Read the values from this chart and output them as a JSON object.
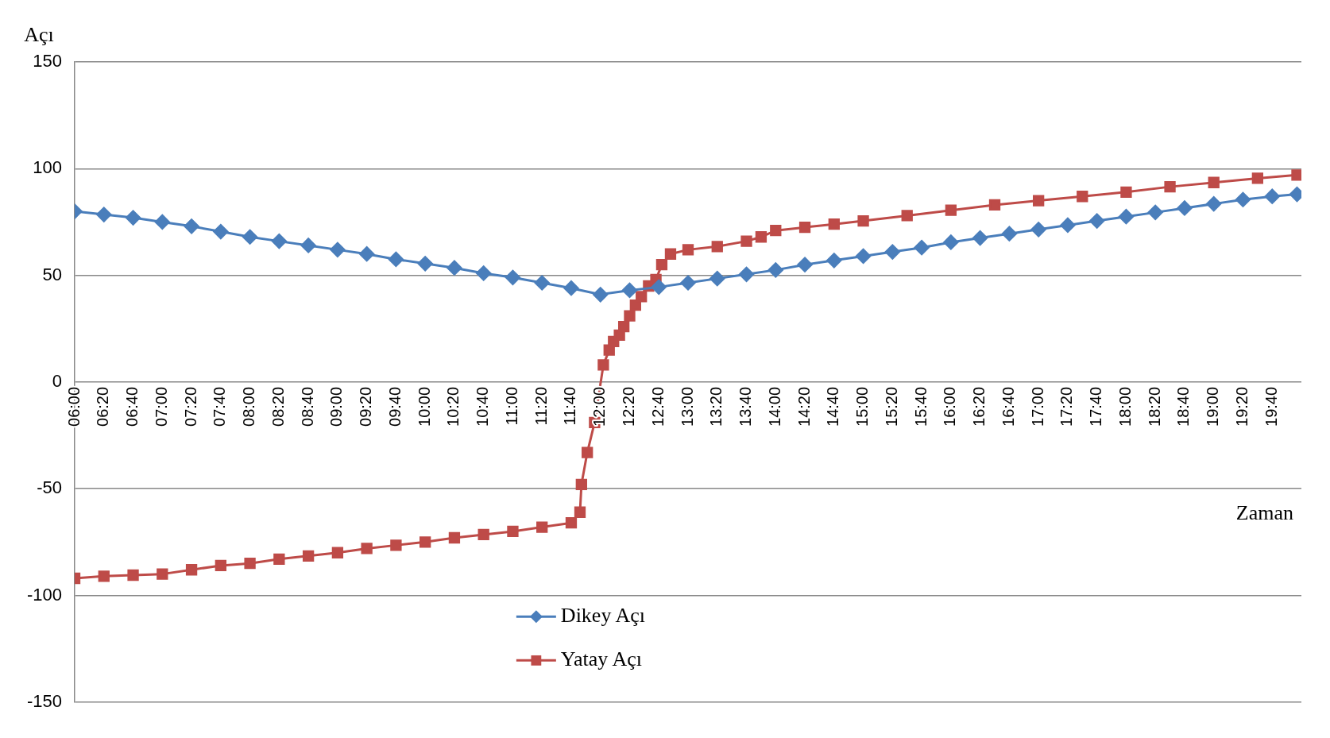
{
  "chart_data": {
    "type": "line",
    "xlabel": "Zaman",
    "ylabel": "Açı",
    "xlim": [
      6,
      20
    ],
    "ylim": [
      -150,
      150
    ],
    "yticks": [
      -150,
      -100,
      -50,
      0,
      50,
      100,
      150
    ],
    "xticks": [
      {
        "value": 6,
        "label": "06:00"
      },
      {
        "value": 6.3333,
        "label": "06:20"
      },
      {
        "value": 6.6667,
        "label": "06:40"
      },
      {
        "value": 7,
        "label": "07:00"
      },
      {
        "value": 7.3333,
        "label": "07:20"
      },
      {
        "value": 7.6667,
        "label": "07:40"
      },
      {
        "value": 8,
        "label": "08:00"
      },
      {
        "value": 8.3333,
        "label": "08:20"
      },
      {
        "value": 8.6667,
        "label": "08:40"
      },
      {
        "value": 9,
        "label": "09:00"
      },
      {
        "value": 9.3333,
        "label": "09:20"
      },
      {
        "value": 9.6667,
        "label": "09:40"
      },
      {
        "value": 10,
        "label": "10:00"
      },
      {
        "value": 10.3333,
        "label": "10:20"
      },
      {
        "value": 10.6667,
        "label": "10:40"
      },
      {
        "value": 11,
        "label": "11:00"
      },
      {
        "value": 11.3333,
        "label": "11:20"
      },
      {
        "value": 11.6667,
        "label": "11:40"
      },
      {
        "value": 12,
        "label": "12:00"
      },
      {
        "value": 12.3333,
        "label": "12:20"
      },
      {
        "value": 12.6667,
        "label": "12:40"
      },
      {
        "value": 13,
        "label": "13:00"
      },
      {
        "value": 13.3333,
        "label": "13:20"
      },
      {
        "value": 13.6667,
        "label": "13:40"
      },
      {
        "value": 14,
        "label": "14:00"
      },
      {
        "value": 14.3333,
        "label": "14:20"
      },
      {
        "value": 14.6667,
        "label": "14:40"
      },
      {
        "value": 15,
        "label": "15:00"
      },
      {
        "value": 15.3333,
        "label": "15:20"
      },
      {
        "value": 15.6667,
        "label": "15:40"
      },
      {
        "value": 16,
        "label": "16:00"
      },
      {
        "value": 16.3333,
        "label": "16:20"
      },
      {
        "value": 16.6667,
        "label": "16:40"
      },
      {
        "value": 17,
        "label": "17:00"
      },
      {
        "value": 17.3333,
        "label": "17:20"
      },
      {
        "value": 17.6667,
        "label": "17:40"
      },
      {
        "value": 18,
        "label": "18:00"
      },
      {
        "value": 18.3333,
        "label": "18:20"
      },
      {
        "value": 18.6667,
        "label": "18:40"
      },
      {
        "value": 19,
        "label": "19:00"
      },
      {
        "value": 19.3333,
        "label": "19:20"
      },
      {
        "value": 19.6667,
        "label": "19:40"
      }
    ],
    "grid": "y",
    "legend": "bottom",
    "line_style": "solid",
    "series": [
      {
        "name": "Dikey Açı",
        "color": "#4a7ebb",
        "marker": "diamond",
        "x": [
          6,
          6.3333,
          6.6667,
          7,
          7.3333,
          7.6667,
          8,
          8.3333,
          8.6667,
          9,
          9.3333,
          9.6667,
          10,
          10.3333,
          10.6667,
          11,
          11.3333,
          11.6667,
          12,
          12.3333,
          12.6667,
          13,
          13.3333,
          13.6667,
          14,
          14.3333,
          14.6667,
          15,
          15.3333,
          15.6667,
          16,
          16.3333,
          16.6667,
          17,
          17.3333,
          17.6667,
          18,
          18.3333,
          18.6667,
          19,
          19.3333,
          19.6667,
          19.95
        ],
        "values": [
          80,
          78.5,
          77,
          75,
          73,
          70.5,
          68,
          66,
          64,
          62,
          60,
          57.5,
          55.5,
          53.5,
          51,
          49,
          46.5,
          44,
          41,
          43,
          44.5,
          46.5,
          48.5,
          50.5,
          52.5,
          55,
          57,
          59,
          61,
          63,
          65.5,
          67.5,
          69.5,
          71.5,
          73.5,
          75.5,
          77.5,
          79.5,
          81.5,
          83.5,
          85.5,
          87,
          88
        ]
      },
      {
        "name": "Yatay Açı",
        "color": "#be4b48",
        "marker": "square",
        "x": [
          6,
          6.3333,
          6.6667,
          7,
          7.3333,
          7.6667,
          8,
          8.3333,
          8.6667,
          9,
          9.3333,
          9.6667,
          10,
          10.3333,
          10.6667,
          11,
          11.3333,
          11.6667,
          11.7667,
          11.7833,
          11.85,
          11.9333,
          12.0333,
          12.1,
          12.15,
          12.2167,
          12.2667,
          12.3333,
          12.4,
          12.4667,
          12.55,
          12.6333,
          12.7,
          12.8,
          13,
          13.3333,
          13.6667,
          13.8333,
          14,
          14.3333,
          14.6667,
          15,
          15.5,
          16,
          16.5,
          17,
          17.5,
          18,
          18.5,
          19,
          19.5,
          19.95
        ],
        "values": [
          -92,
          -91,
          -90.5,
          -90,
          -88,
          -86,
          -85,
          -83,
          -81.5,
          -80,
          -78,
          -76.5,
          -75,
          -73,
          -71.5,
          -70,
          -68,
          -66,
          -61,
          -48,
          -33,
          -19,
          8,
          15,
          19,
          22,
          26,
          31,
          36,
          40,
          45,
          48,
          55,
          60,
          62,
          63.5,
          66,
          68,
          71,
          72.5,
          74,
          75.5,
          78,
          80.5,
          83,
          85,
          87,
          89,
          91.5,
          93.5,
          95.5,
          97
        ]
      }
    ]
  }
}
